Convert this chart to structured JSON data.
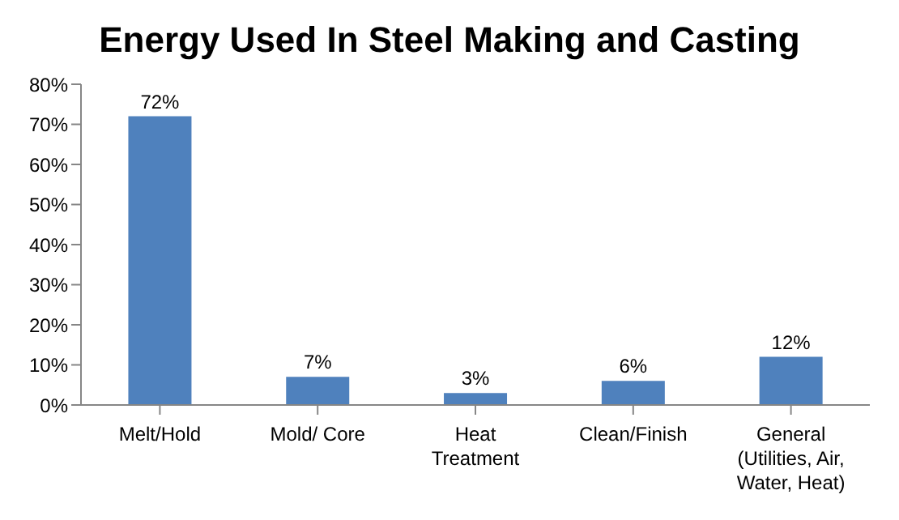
{
  "chart_data": {
    "type": "bar",
    "title": "Energy Used In Steel Making and Casting",
    "categories": [
      "Melt/Hold",
      "Mold/ Core",
      "Heat Treatment",
      "Clean/Finish",
      "General (Utilities, Air, Water, Heat)"
    ],
    "values": [
      72,
      7,
      3,
      6,
      12
    ],
    "value_labels": [
      "72%",
      "7%",
      "3%",
      "6%",
      "12%"
    ],
    "color": "#4f81bd",
    "ylim": [
      0,
      80
    ],
    "yticks": [
      {
        "value": 0,
        "label": "0%"
      },
      {
        "value": 10,
        "label": "10%"
      },
      {
        "value": 20,
        "label": "20%"
      },
      {
        "value": 30,
        "label": "30%"
      },
      {
        "value": 40,
        "label": "40%"
      },
      {
        "value": 50,
        "label": "50%"
      },
      {
        "value": 60,
        "label": "60%"
      },
      {
        "value": 70,
        "label": "70%"
      },
      {
        "value": 80,
        "label": "80%"
      }
    ],
    "grid": false
  }
}
